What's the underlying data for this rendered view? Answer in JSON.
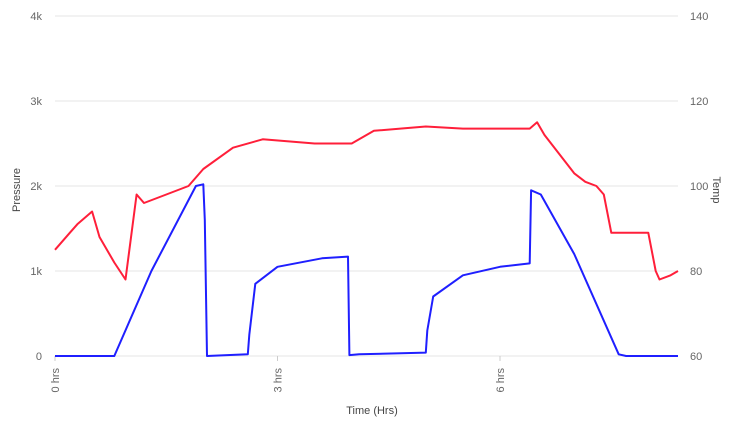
{
  "chart_data": {
    "type": "line",
    "title": "",
    "xlabel": "Time (Hrs)",
    "ylabel_left": "Pressure",
    "ylabel_right": "Temp",
    "grid": true,
    "legend": "none",
    "x_ticks": [
      {
        "value": 0,
        "label": "0 hrs"
      },
      {
        "value": 3,
        "label": "3 hrs"
      },
      {
        "value": 6,
        "label": "6 hrs"
      }
    ],
    "left_axis": {
      "range": [
        0,
        4000
      ],
      "ticks": [
        {
          "value": 0,
          "label": "0"
        },
        {
          "value": 1000,
          "label": "1k"
        },
        {
          "value": 2000,
          "label": "2k"
        },
        {
          "value": 3000,
          "label": "3k"
        },
        {
          "value": 4000,
          "label": "4k"
        }
      ]
    },
    "right_axis": {
      "range": [
        60,
        140
      ],
      "ticks": [
        {
          "value": 60,
          "label": "60"
        },
        {
          "value": 80,
          "label": "80"
        },
        {
          "value": 100,
          "label": "100"
        },
        {
          "value": 120,
          "label": "120"
        },
        {
          "value": 140,
          "label": "140"
        }
      ]
    },
    "xlim": [
      0,
      8.4
    ],
    "series": [
      {
        "axis": "left",
        "color": "#1f1fff",
        "x": [
          0,
          0.8,
          1.3,
          1.9,
          2.0,
          2.02,
          2.05,
          2.6,
          2.62,
          2.7,
          3.0,
          3.6,
          3.95,
          3.97,
          4.1,
          5.0,
          5.02,
          5.1,
          5.5,
          6.0,
          6.4,
          6.42,
          6.55,
          7.0,
          7.6,
          7.7,
          8.4
        ],
        "values": [
          0,
          0,
          1000,
          2000,
          2020,
          1600,
          0,
          20,
          250,
          850,
          1050,
          1150,
          1170,
          10,
          20,
          40,
          300,
          700,
          950,
          1050,
          1090,
          1950,
          1900,
          1200,
          20,
          0,
          0
        ],
        "line_width": 2
      },
      {
        "axis": "right",
        "color": "#ff1f3a",
        "x": [
          0,
          0.2,
          0.3,
          0.5,
          0.6,
          0.8,
          0.95,
          1.1,
          1.2,
          1.5,
          1.8,
          2.0,
          2.4,
          2.8,
          3.5,
          4.0,
          4.3,
          5.0,
          5.5,
          6.0,
          6.4,
          6.5,
          6.6,
          7.0,
          7.15,
          7.3,
          7.4,
          7.5,
          8.0,
          8.1,
          8.15,
          8.3,
          8.4
        ],
        "values": [
          85,
          89,
          91,
          94,
          88,
          82,
          78,
          98,
          96,
          98,
          100,
          104,
          109,
          111,
          110,
          110,
          113,
          114,
          113.5,
          113.5,
          113.5,
          115,
          112,
          103,
          101,
          100,
          98,
          89,
          89,
          80,
          78,
          79,
          80
        ],
        "line_width": 2
      }
    ]
  }
}
